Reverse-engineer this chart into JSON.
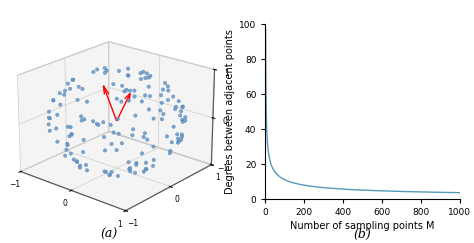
{
  "fig_width": 4.74,
  "fig_height": 2.43,
  "dpi": 100,
  "label_a": "(a)",
  "label_b": "(b)",
  "sphere_n_points": 150,
  "sphere_color": "#6699cc",
  "sphere_edgecolor": "#4477aa",
  "arrow_color": "red",
  "line_color": "#5599bb",
  "xlabel_b": "Number of sampling points M",
  "ylabel_b": "Degrees between adjacent points",
  "xlim_b": [
    0,
    1000
  ],
  "ylim_b": [
    0,
    100
  ],
  "xticks_b": [
    0,
    200,
    400,
    600,
    800,
    1000
  ],
  "yticks_b": [
    0,
    20,
    40,
    60,
    80,
    100
  ],
  "axis_tick_labels_b_x": [
    "0",
    "200",
    "400",
    "600",
    "800",
    "1000"
  ],
  "axis_tick_labels_b_y": [
    "0",
    "20",
    "40",
    "60",
    "80",
    "100"
  ],
  "view_elev": 22,
  "view_azim": -50
}
